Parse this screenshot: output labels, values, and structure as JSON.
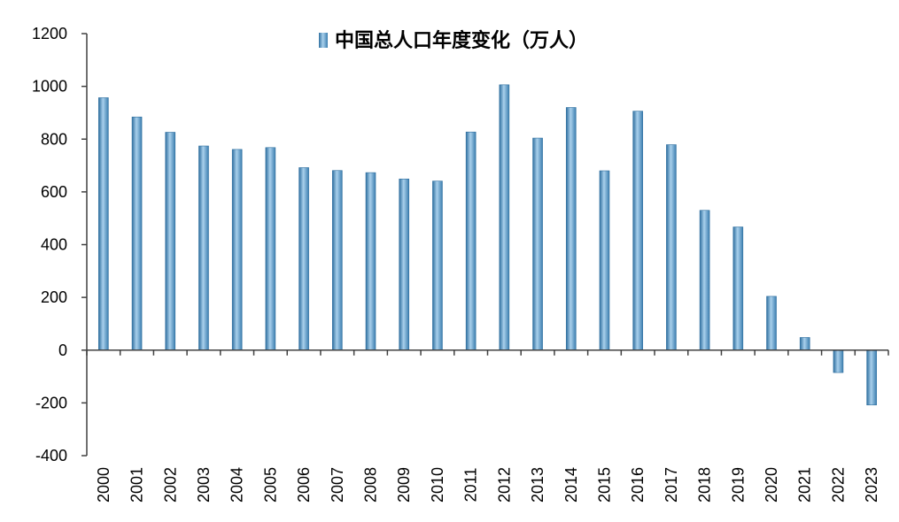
{
  "chart_data": {
    "type": "bar",
    "categories": [
      "2000",
      "2001",
      "2002",
      "2003",
      "2004",
      "2005",
      "2006",
      "2007",
      "2008",
      "2009",
      "2010",
      "2011",
      "2012",
      "2013",
      "2014",
      "2015",
      "2016",
      "2017",
      "2018",
      "2019",
      "2020",
      "2021",
      "2022",
      "2023"
    ],
    "series": [
      {
        "name": "中国总人口年度变化（万人）",
        "values": [
          957,
          884,
          826,
          774,
          761,
          768,
          692,
          681,
          673,
          649,
          641,
          827,
          1006,
          804,
          920,
          680,
          906,
          779,
          530,
          467,
          204,
          48,
          -85,
          -208
        ]
      }
    ],
    "title": "",
    "xlabel": "",
    "ylabel": "",
    "ylim": [
      -400,
      1200
    ],
    "yticks": [
      1200,
      1000,
      800,
      600,
      400,
      200,
      0,
      -200,
      -400
    ],
    "grid": false,
    "legend_position": "top",
    "colors": {
      "bar": "#5b9fcf",
      "bar_dark": "#2f6f9f",
      "bar_light": "#a9d0ec",
      "axis": "#404040"
    }
  }
}
